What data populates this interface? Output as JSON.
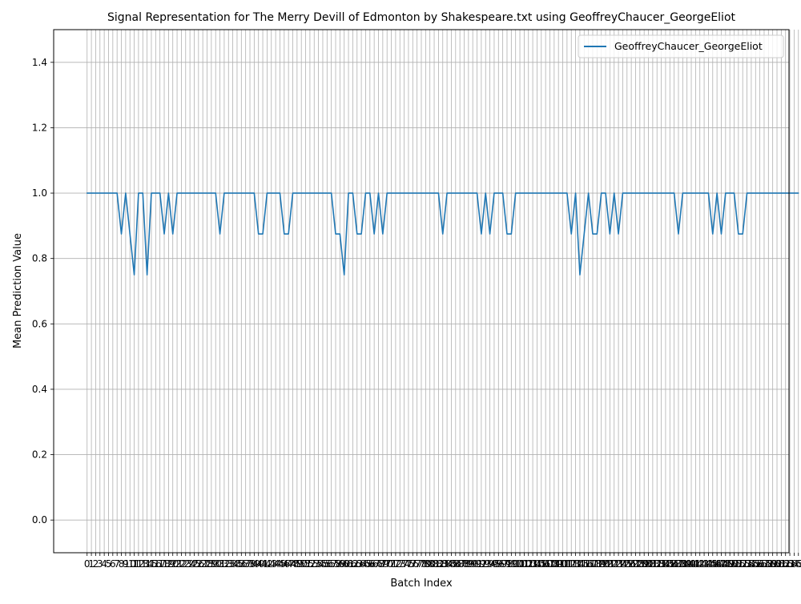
{
  "chart_data": {
    "type": "line",
    "title": "Signal Representation for The Merry Devill of Edmonton by Shakespeare.txt using GeoffreyChaucer_GeorgeEliot",
    "xlabel": "Batch Index",
    "ylabel": "Mean Prediction Value",
    "xlim": [
      -7.8,
      163.8
    ],
    "ylim": [
      -0.1,
      1.5
    ],
    "grid": true,
    "legend_position": "top-right",
    "series_color": "#1f77b4",
    "grid_color": "#b0b0b0",
    "y_ticks": [
      "0.0",
      "0.2",
      "0.4",
      "0.6",
      "0.8",
      "1.0",
      "1.2",
      "1.4"
    ],
    "y_tick_values": [
      0.0,
      0.2,
      0.4,
      0.6,
      0.8,
      1.0,
      1.2,
      1.4
    ],
    "series": [
      {
        "name": "GeoffreyChaucer_GeorgeEliot",
        "values": [
          1,
          1,
          1,
          1,
          1,
          1,
          1,
          1,
          0.875,
          1,
          0.875,
          0.75,
          1,
          1,
          0.75,
          1,
          1,
          1,
          0.875,
          1,
          0.875,
          1,
          1,
          1,
          1,
          1,
          1,
          1,
          1,
          1,
          1,
          0.875,
          1,
          1,
          1,
          1,
          1,
          1,
          1,
          1,
          0.875,
          0.875,
          1,
          1,
          1,
          1,
          0.875,
          0.875,
          1,
          1,
          1,
          1,
          1,
          1,
          1,
          1,
          1,
          1,
          0.875,
          0.875,
          0.75,
          1,
          1,
          0.875,
          0.875,
          1,
          1,
          0.875,
          1,
          0.875,
          1,
          1,
          1,
          1,
          1,
          1,
          1,
          1,
          1,
          1,
          1,
          1,
          1,
          0.875,
          1,
          1,
          1,
          1,
          1,
          1,
          1,
          1,
          0.875,
          1,
          0.875,
          1,
          1,
          1,
          0.875,
          0.875,
          1,
          1,
          1,
          1,
          1,
          1,
          1,
          1,
          1,
          1,
          1,
          1,
          1,
          0.875,
          1,
          0.75,
          0.875,
          1,
          0.875,
          0.875,
          1,
          1,
          0.875,
          1,
          0.875,
          1,
          1,
          1,
          1,
          1,
          1,
          1,
          1,
          1,
          1,
          1,
          1,
          1,
          0.875,
          1,
          1,
          1,
          1,
          1,
          1,
          1,
          0.875,
          1,
          0.875,
          1,
          1,
          1,
          0.875,
          0.875,
          1,
          1,
          1,
          1,
          1,
          1,
          1,
          1,
          1,
          1,
          1,
          1,
          1
        ]
      }
    ]
  }
}
